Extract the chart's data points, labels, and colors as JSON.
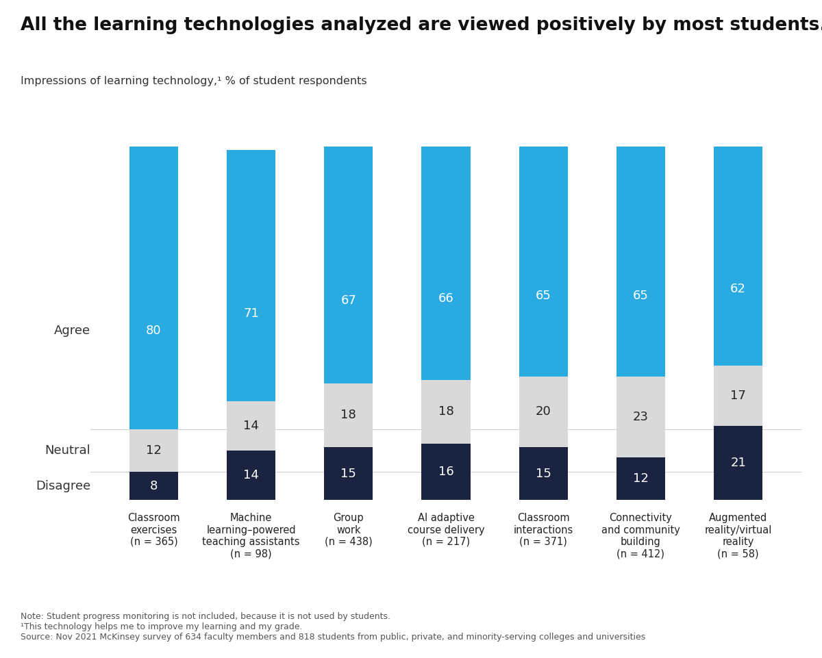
{
  "title": "All the learning technologies analyzed are viewed positively by most students.",
  "subtitle": "Impressions of learning technology,¹ % of student respondents",
  "categories": [
    "Classroom\nexercises\n(n = 365)",
    "Machine\nlearning–powered\nteaching assistants\n(n = 98)",
    "Group\nwork\n(n = 438)",
    "AI adaptive\ncourse delivery\n(n = 217)",
    "Classroom\ninteractions\n(n = 371)",
    "Connectivity\nand community\nbuilding\n(n = 412)",
    "Augmented\nreality/virtual\nreality\n(n = 58)"
  ],
  "agree": [
    80,
    71,
    67,
    66,
    65,
    65,
    62
  ],
  "neutral": [
    12,
    14,
    18,
    18,
    20,
    23,
    17
  ],
  "disagree": [
    8,
    14,
    15,
    16,
    15,
    12,
    21
  ],
  "agree_color": "#29ABE2",
  "neutral_color": "#D9D9D9",
  "disagree_color": "#1A2340",
  "agree_label": "Agree",
  "neutral_label": "Neutral",
  "disagree_label": "Disagree",
  "note1": "Note: Student progress monitoring is not included, because it is not used by students.",
  "note2": "¹This technology helps me to improve my learning and my grade.",
  "note3": "Source: Nov 2021 McKinsey survey of 634 faculty members and 818 students from public, private, and minority-serving colleges and universities",
  "background_color": "#FFFFFF",
  "bar_width": 0.5,
  "ylim": [
    0,
    108
  ]
}
